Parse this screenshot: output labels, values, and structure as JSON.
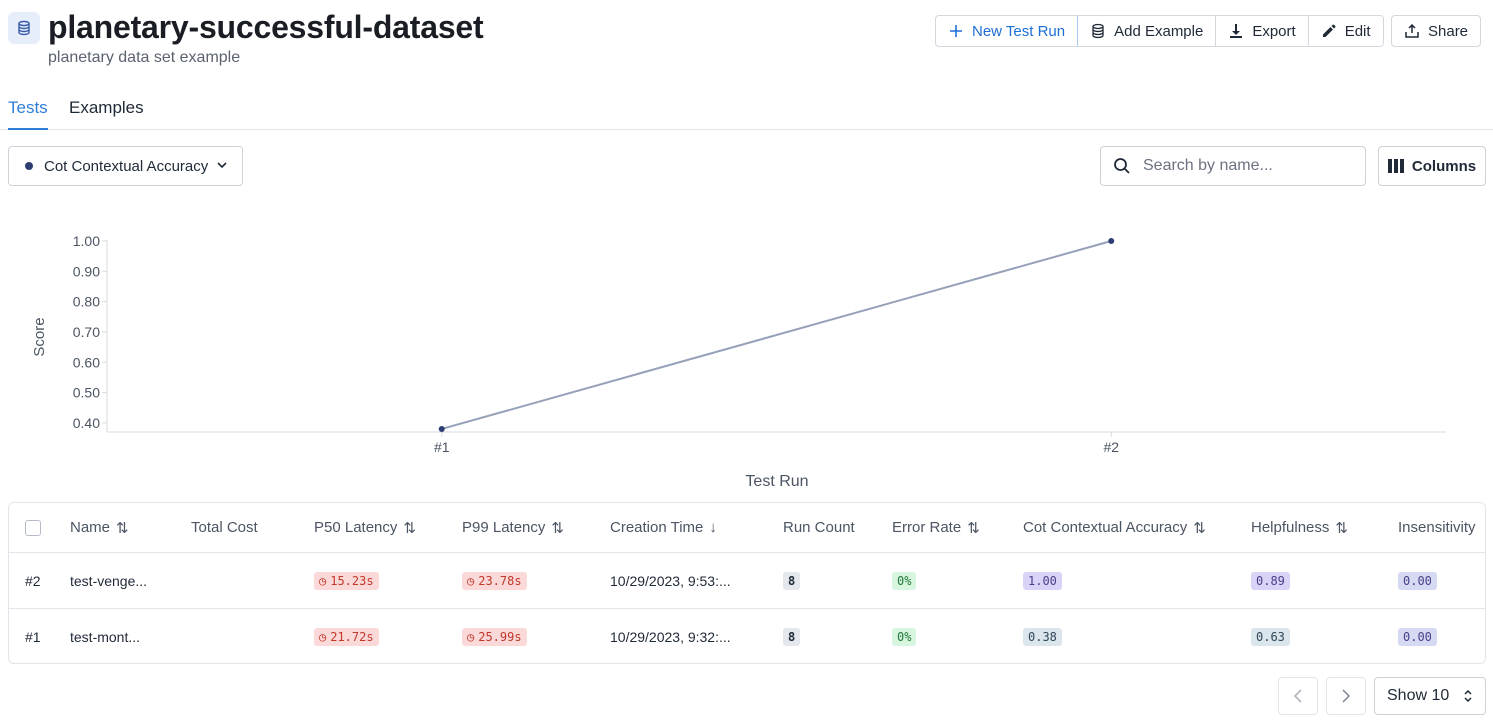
{
  "header": {
    "title": "planetary-successful-dataset",
    "subtitle": "planetary data set example",
    "icon": "database-icon"
  },
  "toolbar": {
    "new_test_run": "New Test Run",
    "add_example": "Add Example",
    "export": "Export",
    "edit": "Edit",
    "share": "Share"
  },
  "tabs": [
    {
      "label": "Tests",
      "active": true
    },
    {
      "label": "Examples",
      "active": false
    }
  ],
  "filters": {
    "metric": "Cot Contextual Accuracy",
    "search_placeholder": "Search by name...",
    "columns_label": "Columns"
  },
  "chart_data": {
    "type": "line",
    "categories": [
      "#1",
      "#2"
    ],
    "values": [
      0.38,
      1.0
    ],
    "xlabel": "Test Run",
    "ylabel": "Score",
    "yticks": [
      "0.40",
      "0.50",
      "0.60",
      "0.70",
      "0.80",
      "0.90",
      "1.00"
    ],
    "ylim": [
      0.37,
      1.0
    ],
    "grid": false,
    "line_color": "#95a1b8",
    "point_color": "#2c3e73"
  },
  "table": {
    "columns": [
      "Name",
      "Total Cost",
      "P50 Latency",
      "P99 Latency",
      "Creation Time",
      "Run Count",
      "Error Rate",
      "Cot Contextual Accuracy",
      "Helpfulness",
      "Insensitivity"
    ],
    "rows": [
      {
        "id": "#2",
        "name": "test-venge...",
        "total_cost": "",
        "p50": "15.23s",
        "p99": "23.78s",
        "created": "10/29/2023, 9:53:...",
        "run_count": "8",
        "error_rate": "0%",
        "cot": "1.00",
        "helpfulness": "0.89",
        "insensitivity": "0.00"
      },
      {
        "id": "#1",
        "name": "test-mont...",
        "total_cost": "",
        "p50": "21.72s",
        "p99": "25.99s",
        "created": "10/29/2023, 9:32:...",
        "run_count": "8",
        "error_rate": "0%",
        "cot": "0.38",
        "helpfulness": "0.63",
        "insensitivity": "0.00"
      }
    ]
  },
  "pagination": {
    "show_label": "Show 10"
  },
  "colors": {
    "accent": "#2f7fd8",
    "latency_badge": "#fbd9d9",
    "error_badge": "#d7f5df",
    "score_badge": "#d9d4f7"
  }
}
